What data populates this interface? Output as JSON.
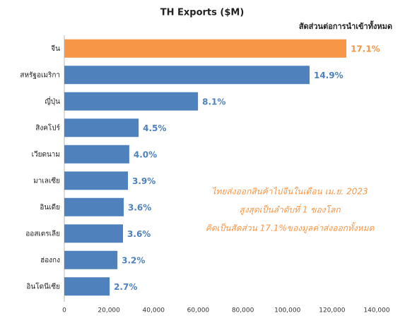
{
  "chart_data": {
    "type": "hbar",
    "title": "TH Exports ($M)",
    "share_header": "สัดส่วนต่อการนำเข้าทั้งหมด",
    "categories": [
      "จีน",
      "สหรัฐอเมริกา",
      "ญี่ปุ่น",
      "สิงคโปร์",
      "เวียดนาม",
      "มาเลเซีย",
      "อินเดีย",
      "ออสเตรเลีย",
      "ฮ่องกง",
      "อินโดนีเซีย"
    ],
    "values": [
      126400,
      109900,
      59900,
      33300,
      29100,
      28500,
      26600,
      26300,
      23800,
      20300
    ],
    "share_labels": [
      "17.1%",
      "14.9%",
      "8.1%",
      "4.5%",
      "4.0%",
      "3.9%",
      "3.6%",
      "3.6%",
      "3.2%",
      "2.7%"
    ],
    "colors": [
      "#f79646",
      "#4f81bd",
      "#4f81bd",
      "#4f81bd",
      "#4f81bd",
      "#4f81bd",
      "#4f81bd",
      "#4f81bd",
      "#4f81bd",
      "#4f81bd"
    ],
    "xlim": [
      0,
      140000
    ],
    "xticks": [
      0,
      {
        "value": 20000,
        "label": "20,000"
      },
      {
        "value": 40000,
        "label": "40,000"
      },
      {
        "value": 60000,
        "label": "60,000"
      },
      {
        "value": 80000,
        "label": "80,000"
      },
      {
        "value": 100000,
        "label": "100,000"
      },
      {
        "value": 120000,
        "label": "120,000"
      },
      {
        "value": 140000,
        "label": "140,000"
      }
    ],
    "annotation": [
      "ไทยส่งออกสินค้าไปจีนในเดือน เม.ย. 2023",
      "สูงสุดเป็นลำดับที่ 1 ของโลก",
      "คิดเป็นสัดส่วน 17.1%ของมูลค่าส่งออกทั้งหมด"
    ],
    "grid": false
  }
}
